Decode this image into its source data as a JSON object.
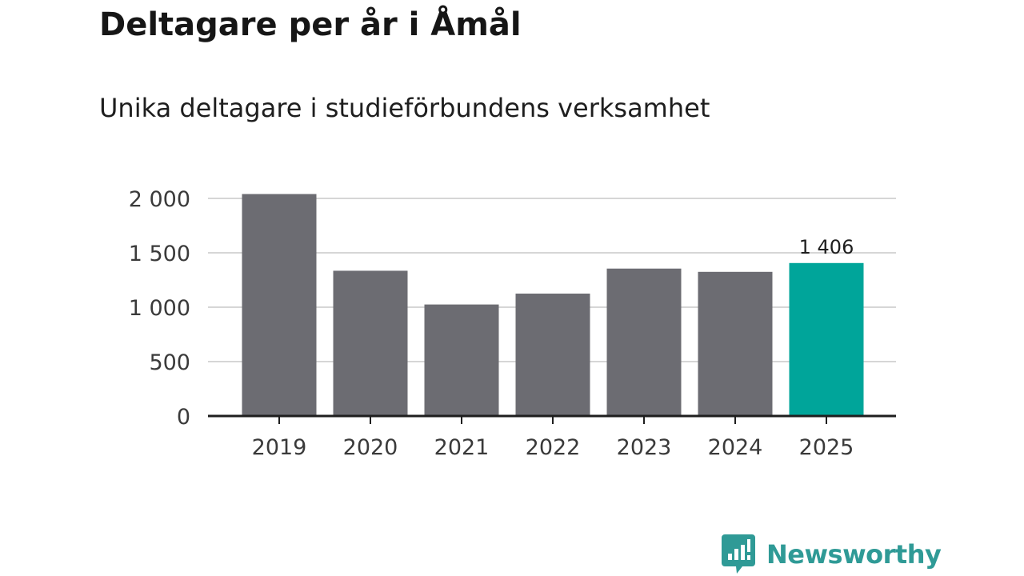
{
  "chart_data": {
    "type": "bar",
    "title": "Deltagare per år i Åmål",
    "subtitle": "Unika deltagare i studieförbundens verksamhet",
    "categories": [
      "2019",
      "2020",
      "2021",
      "2022",
      "2023",
      "2024",
      "2025"
    ],
    "values": [
      2040,
      1335,
      1025,
      1125,
      1355,
      1325,
      1406
    ],
    "ylim": [
      0,
      2000
    ],
    "yticks": [
      0,
      500,
      1000,
      1500,
      2000
    ],
    "ytick_labels": [
      "0",
      "500",
      "1 000",
      "1 500",
      "2 000"
    ],
    "xlabel": "",
    "ylabel": "",
    "grid": true,
    "highlight_index": 6,
    "data_label": "1 406",
    "colors": {
      "bar": "#6c6c72",
      "highlight": "#00a59a",
      "grid": "#d6d6d6",
      "axis": "#1e1e1e"
    }
  },
  "brand": {
    "name": "Newsworthy",
    "color": "#2f9a96"
  }
}
